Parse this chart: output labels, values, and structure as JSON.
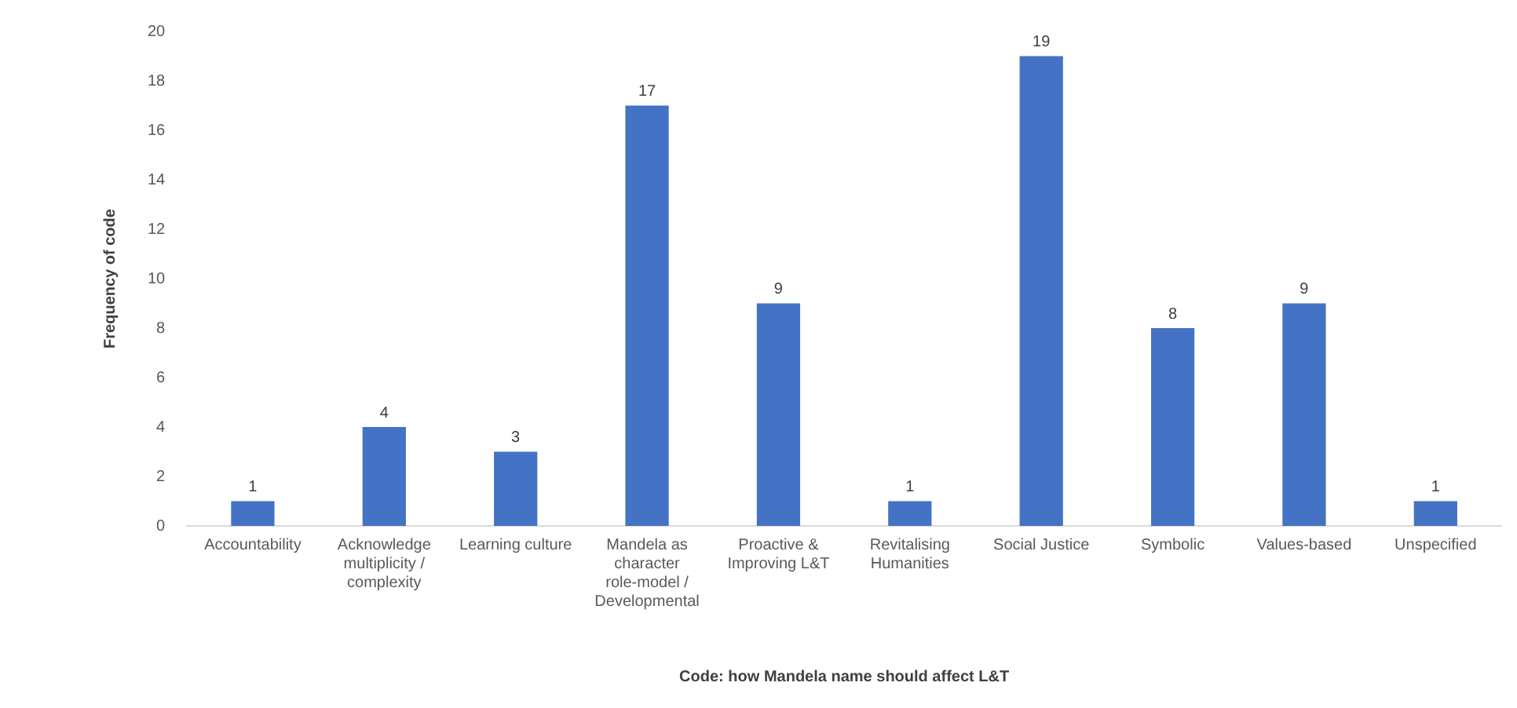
{
  "chart_data": {
    "type": "bar",
    "xlabel": "Code: how Mandela name should affect L&T",
    "ylabel": "Frequency of code",
    "categories": [
      "Accountability",
      "Acknowledge multiplicity / complexity",
      "Learning culture",
      "Mandela as character role-model / Developmental",
      "Proactive & Improving L&T",
      "Revitalising Humanities",
      "Social Justice",
      "Symbolic",
      "Values-based",
      "Unspecified"
    ],
    "values": [
      1,
      4,
      3,
      17,
      9,
      1,
      19,
      8,
      9,
      1
    ],
    "color": "#4472c4",
    "ylim": [
      0,
      20
    ],
    "yticks": [
      0,
      2,
      4,
      6,
      8,
      10,
      12,
      14,
      16,
      18,
      20
    ],
    "grid": false,
    "data_labels": true
  }
}
